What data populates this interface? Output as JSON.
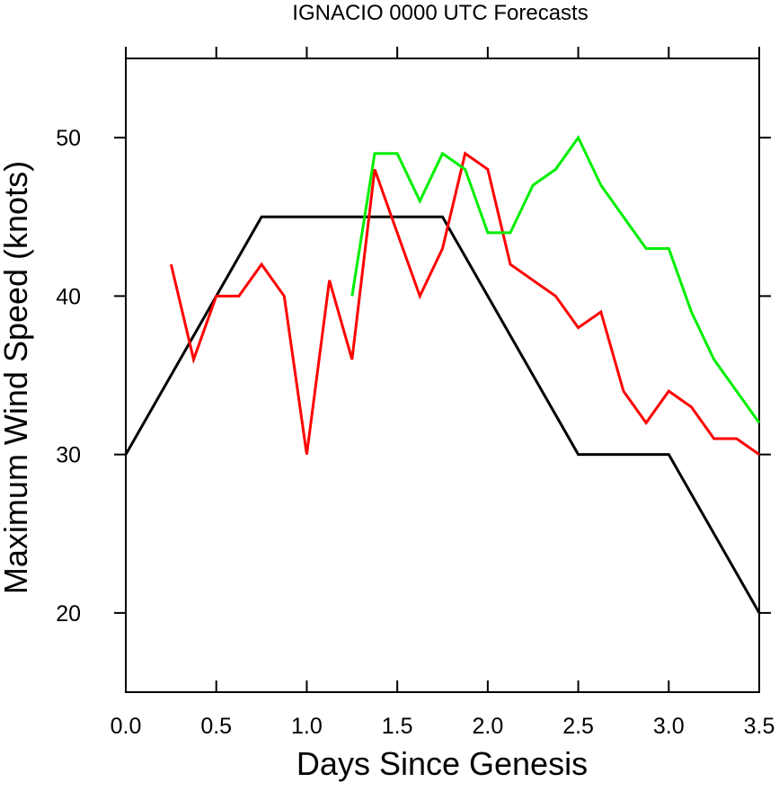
{
  "chart_data": {
    "type": "line",
    "title": "IGNACIO 0000 UTC Forecasts",
    "xlabel": "Days Since Genesis",
    "ylabel": "Maximum Wind Speed (knots)",
    "xlim": [
      0,
      3.5
    ],
    "ylim": [
      15,
      55
    ],
    "xticks": [
      0.0,
      0.5,
      1.0,
      1.5,
      2.0,
      2.5,
      3.0,
      3.5
    ],
    "xtick_labels": [
      "0.0",
      "0.5",
      "1.0",
      "1.5",
      "2.0",
      "2.5",
      "3.0",
      "3.5"
    ],
    "yticks": [
      20,
      30,
      40,
      50
    ],
    "ytick_labels": [
      "20",
      "30",
      "40",
      "50"
    ],
    "grid": false,
    "series": [
      {
        "color": "#000000",
        "x": [
          0,
          0.75,
          1.75,
          2.5,
          3.0,
          3.5
        ],
        "y": [
          30,
          45,
          45,
          30,
          30,
          20
        ]
      },
      {
        "color": "#ff0000",
        "x": [
          0.25,
          0.375,
          0.5,
          0.625,
          0.75,
          0.875,
          1.0,
          1.125,
          1.25,
          1.375,
          1.5,
          1.625,
          1.75,
          1.875,
          2.0,
          2.125,
          2.25,
          2.375,
          2.5,
          2.625,
          2.75,
          2.875,
          3.0,
          3.125,
          3.25,
          3.375,
          3.5
        ],
        "y": [
          42,
          36,
          40,
          40,
          42,
          40,
          30,
          41,
          36,
          48,
          44,
          40,
          43,
          49,
          48,
          42,
          41,
          40,
          38,
          39,
          34,
          32,
          34,
          33,
          31,
          31,
          30
        ]
      },
      {
        "color": "#00ee00",
        "x": [
          1.25,
          1.375,
          1.5,
          1.625,
          1.75,
          1.875,
          2.0,
          2.125,
          2.25,
          2.375,
          2.5,
          2.625,
          2.75,
          2.875,
          3.0,
          3.125,
          3.25,
          3.375,
          3.5
        ],
        "y": [
          40,
          49,
          49,
          46,
          49,
          48,
          44,
          44,
          47,
          48,
          50,
          47,
          45,
          43,
          43,
          39,
          36,
          34,
          32
        ]
      }
    ]
  }
}
